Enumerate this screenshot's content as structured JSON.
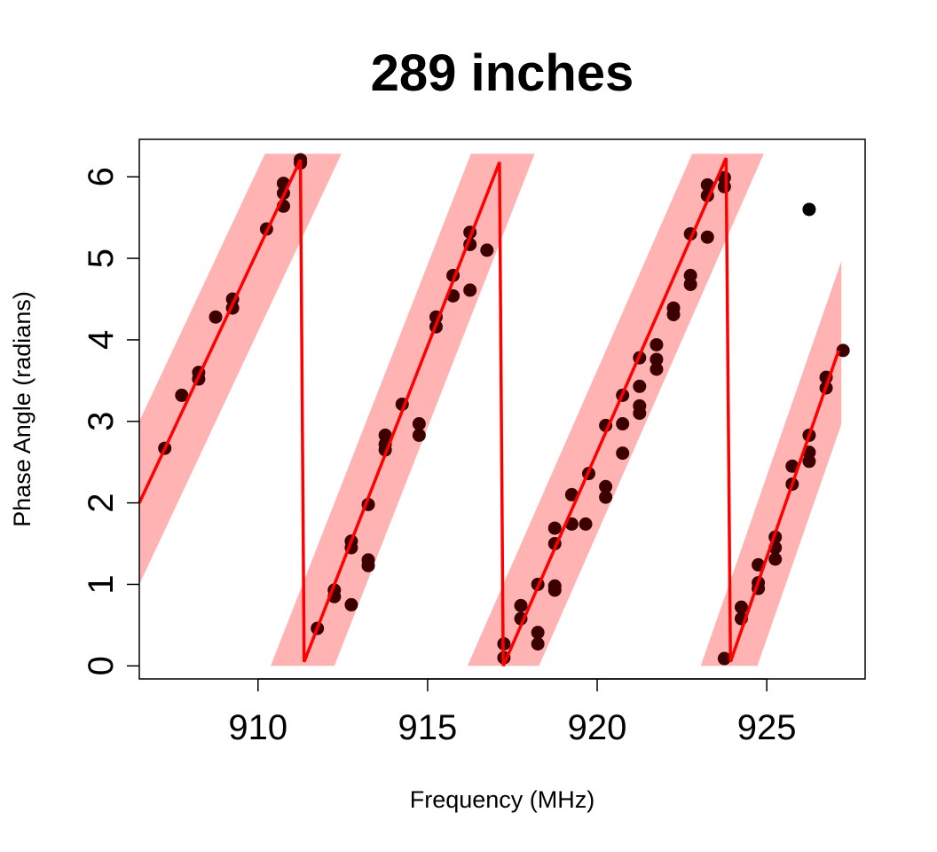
{
  "chart_data": {
    "type": "scatter",
    "title": "289 inches",
    "xlabel": "Frequency (MHz)",
    "ylabel": "Phase Angle (radians)",
    "xlim": [
      906.5,
      927.9
    ],
    "ylim": [
      -0.16,
      6.46
    ],
    "xticks": [
      910,
      915,
      920,
      925
    ],
    "xtick_labels": [
      "910",
      "915",
      "920",
      "925"
    ],
    "yticks": [
      0,
      1,
      2,
      3,
      4,
      5,
      6
    ],
    "ytick_labels": [
      "0",
      "1",
      "2",
      "3",
      "4",
      "5",
      "6"
    ],
    "grid": false,
    "colors": {
      "points": "#3d0000",
      "outlier": "#000000",
      "fit_line": "#ff0000",
      "band": "#ffb3b3"
    },
    "band_halfwidth": 1.0,
    "band_xmax": 927.2,
    "fit_line": [
      [
        906.5,
        2.0
      ],
      [
        911.25,
        6.21
      ],
      [
        911.36,
        0.05
      ],
      [
        917.12,
        6.18
      ],
      [
        917.23,
        0.0
      ],
      [
        923.8,
        6.23
      ],
      [
        923.93,
        0.05
      ],
      [
        927.12,
        3.87
      ]
    ],
    "fit_segments": [
      [
        [
          906.5,
          2.0
        ],
        [
          911.25,
          6.21
        ]
      ],
      [
        [
          911.36,
          0.05
        ],
        [
          917.12,
          6.18
        ]
      ],
      [
        [
          917.23,
          0.0
        ],
        [
          923.8,
          6.23
        ]
      ],
      [
        [
          923.93,
          0.05
        ],
        [
          927.12,
          3.87
        ]
      ]
    ],
    "points": [
      [
        907.25,
        2.67
      ],
      [
        907.75,
        3.32
      ],
      [
        908.25,
        3.6
      ],
      [
        908.25,
        3.52
      ],
      [
        908.75,
        4.28
      ],
      [
        909.25,
        4.5
      ],
      [
        909.25,
        4.39
      ],
      [
        910.25,
        5.36
      ],
      [
        910.75,
        5.92
      ],
      [
        910.75,
        5.8
      ],
      [
        910.75,
        5.64
      ],
      [
        911.25,
        6.21
      ],
      [
        911.25,
        6.17
      ],
      [
        911.75,
        0.46
      ],
      [
        912.25,
        0.93
      ],
      [
        912.25,
        0.85
      ],
      [
        912.75,
        1.53
      ],
      [
        912.75,
        1.45
      ],
      [
        912.75,
        0.75
      ],
      [
        913.25,
        1.98
      ],
      [
        913.25,
        1.3
      ],
      [
        913.25,
        1.23
      ],
      [
        913.75,
        2.83
      ],
      [
        913.75,
        2.72
      ],
      [
        913.75,
        2.65
      ],
      [
        914.25,
        3.21
      ],
      [
        914.75,
        2.97
      ],
      [
        914.75,
        2.83
      ],
      [
        915.25,
        4.28
      ],
      [
        915.25,
        4.16
      ],
      [
        915.75,
        4.79
      ],
      [
        915.75,
        4.54
      ],
      [
        916.25,
        5.32
      ],
      [
        916.25,
        5.17
      ],
      [
        916.25,
        4.61
      ],
      [
        916.75,
        5.1
      ],
      [
        917.25,
        0.27
      ],
      [
        917.25,
        0.1
      ],
      [
        917.75,
        0.74
      ],
      [
        917.75,
        0.58
      ],
      [
        918.25,
        1.0
      ],
      [
        918.25,
        0.41
      ],
      [
        918.25,
        0.27
      ],
      [
        918.75,
        1.69
      ],
      [
        918.75,
        1.5
      ],
      [
        918.75,
        0.98
      ],
      [
        918.75,
        0.93
      ],
      [
        919.25,
        2.1
      ],
      [
        919.25,
        1.74
      ],
      [
        919.66,
        1.74
      ],
      [
        919.75,
        2.36
      ],
      [
        920.25,
        2.2
      ],
      [
        920.25,
        2.07
      ],
      [
        920.25,
        2.95
      ],
      [
        920.75,
        3.32
      ],
      [
        920.75,
        2.97
      ],
      [
        920.75,
        2.61
      ],
      [
        921.25,
        3.78
      ],
      [
        921.25,
        3.43
      ],
      [
        921.25,
        3.19
      ],
      [
        921.25,
        3.1
      ],
      [
        921.75,
        3.94
      ],
      [
        921.75,
        3.76
      ],
      [
        921.75,
        3.64
      ],
      [
        922.25,
        4.39
      ],
      [
        922.25,
        4.31
      ],
      [
        922.75,
        5.3
      ],
      [
        922.75,
        4.79
      ],
      [
        922.75,
        4.68
      ],
      [
        923.25,
        5.9
      ],
      [
        923.25,
        5.77
      ],
      [
        923.25,
        5.26
      ],
      [
        923.75,
        5.99
      ],
      [
        923.75,
        5.88
      ],
      [
        923.75,
        0.09
      ],
      [
        924.25,
        0.72
      ],
      [
        924.25,
        0.58
      ],
      [
        924.75,
        1.24
      ],
      [
        924.75,
        1.02
      ],
      [
        924.75,
        0.95
      ],
      [
        925.25,
        1.58
      ],
      [
        925.25,
        1.45
      ],
      [
        925.25,
        1.31
      ],
      [
        925.75,
        2.45
      ],
      [
        925.75,
        2.23
      ],
      [
        926.25,
        2.83
      ],
      [
        926.25,
        2.62
      ],
      [
        926.25,
        2.51
      ],
      [
        926.75,
        3.54
      ],
      [
        926.75,
        3.41
      ],
      [
        927.25,
        3.87
      ]
    ],
    "outliers": [
      [
        926.25,
        5.6
      ]
    ]
  }
}
